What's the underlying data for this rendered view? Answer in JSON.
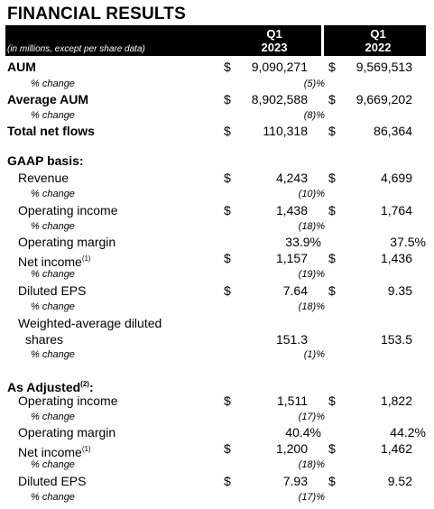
{
  "title": "FINANCIAL RESULTS",
  "header": {
    "note": "(in millions, except per share data)",
    "col1_line1": "Q1",
    "col1_line2": "2023",
    "col2_line1": "Q1",
    "col2_line2": "2022"
  },
  "labels": {
    "pct_change": "% change",
    "dollar": "$",
    "gaap_section": "GAAP basis:",
    "adjusted_section": "As Adjusted",
    "adjusted_sup": "(2)",
    "adjusted_colon": ":",
    "net_income_sup": "(1)"
  },
  "aum": {
    "label": "AUM",
    "q1_2023": "9,090,271",
    "q1_2022": "9,569,513",
    "change": "(5)%"
  },
  "avg_aum": {
    "label": "Average AUM",
    "q1_2023": "8,902,588",
    "q1_2022": "9,669,202",
    "change": "(8)%"
  },
  "net_flows": {
    "label": "Total net flows",
    "q1_2023": "110,318",
    "q1_2022": "86,364"
  },
  "gaap": {
    "revenue": {
      "label": "Revenue",
      "q1_2023": "4,243",
      "q1_2022": "4,699",
      "change": "(10)%"
    },
    "operating_income": {
      "label": "Operating income",
      "q1_2023": "1,438",
      "q1_2022": "1,764",
      "change": "(18)%"
    },
    "operating_margin": {
      "label": "Operating margin",
      "q1_2023": "33.9%",
      "q1_2022": "37.5%"
    },
    "net_income": {
      "label": "Net income",
      "q1_2023": "1,157",
      "q1_2022": "1,436",
      "change": "(19)%"
    },
    "diluted_eps": {
      "label": "Diluted EPS",
      "q1_2023": "7.64",
      "q1_2022": "9.35",
      "change": "(18)%"
    },
    "shares": {
      "label_line1": "Weighted-average diluted",
      "label_line2": "shares",
      "q1_2023": "151.3",
      "q1_2022": "153.5",
      "change": "(1)%"
    }
  },
  "adjusted": {
    "operating_income": {
      "label": "Operating income",
      "q1_2023": "1,511",
      "q1_2022": "1,822",
      "change": "(17)%"
    },
    "operating_margin": {
      "label": "Operating margin",
      "q1_2023": "40.4%",
      "q1_2022": "44.2%"
    },
    "net_income": {
      "label": "Net income",
      "q1_2023": "1,200",
      "q1_2022": "1,462",
      "change": "(18)%"
    },
    "diluted_eps": {
      "label": "Diluted EPS",
      "q1_2023": "7.93",
      "q1_2022": "9.52",
      "change": "(17)%"
    }
  }
}
